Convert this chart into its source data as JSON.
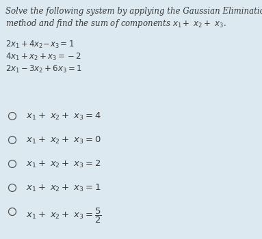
{
  "bg_color": "#dce9f0",
  "text_color": "#3a3a3a",
  "circle_color": "#555555",
  "title_line1": "Solve the following system by applying the Gaussian Elimination",
  "title_line2": "method and find the sum of components $x_1+\\ x_2+\\ x_3$.",
  "eq1": "$2x_1+4x_2\\text{-}x_3=1$",
  "eq2": "$4x_1+x_2+x_3=\\text{-}2$",
  "eq3": "$2x_1\\text{-}3x_2+6x_3=1$",
  "options": [
    "$x_1+\\ x_2+\\ x_3 = 4$",
    "$x_1+\\ x_2+\\ x_3 = 0$",
    "$x_1+\\ x_2+\\ x_3 = 2$",
    "$x_1+\\ x_2+\\ x_3 = 1$",
    "$x_1+\\ x_2+\\ x_3 = \\dfrac{5}{2}$"
  ],
  "title_fontsize": 8.5,
  "eq_fontsize": 8.5,
  "option_fontsize": 9.5,
  "fig_width": 3.83,
  "fig_height": 3.5,
  "dpi": 100
}
